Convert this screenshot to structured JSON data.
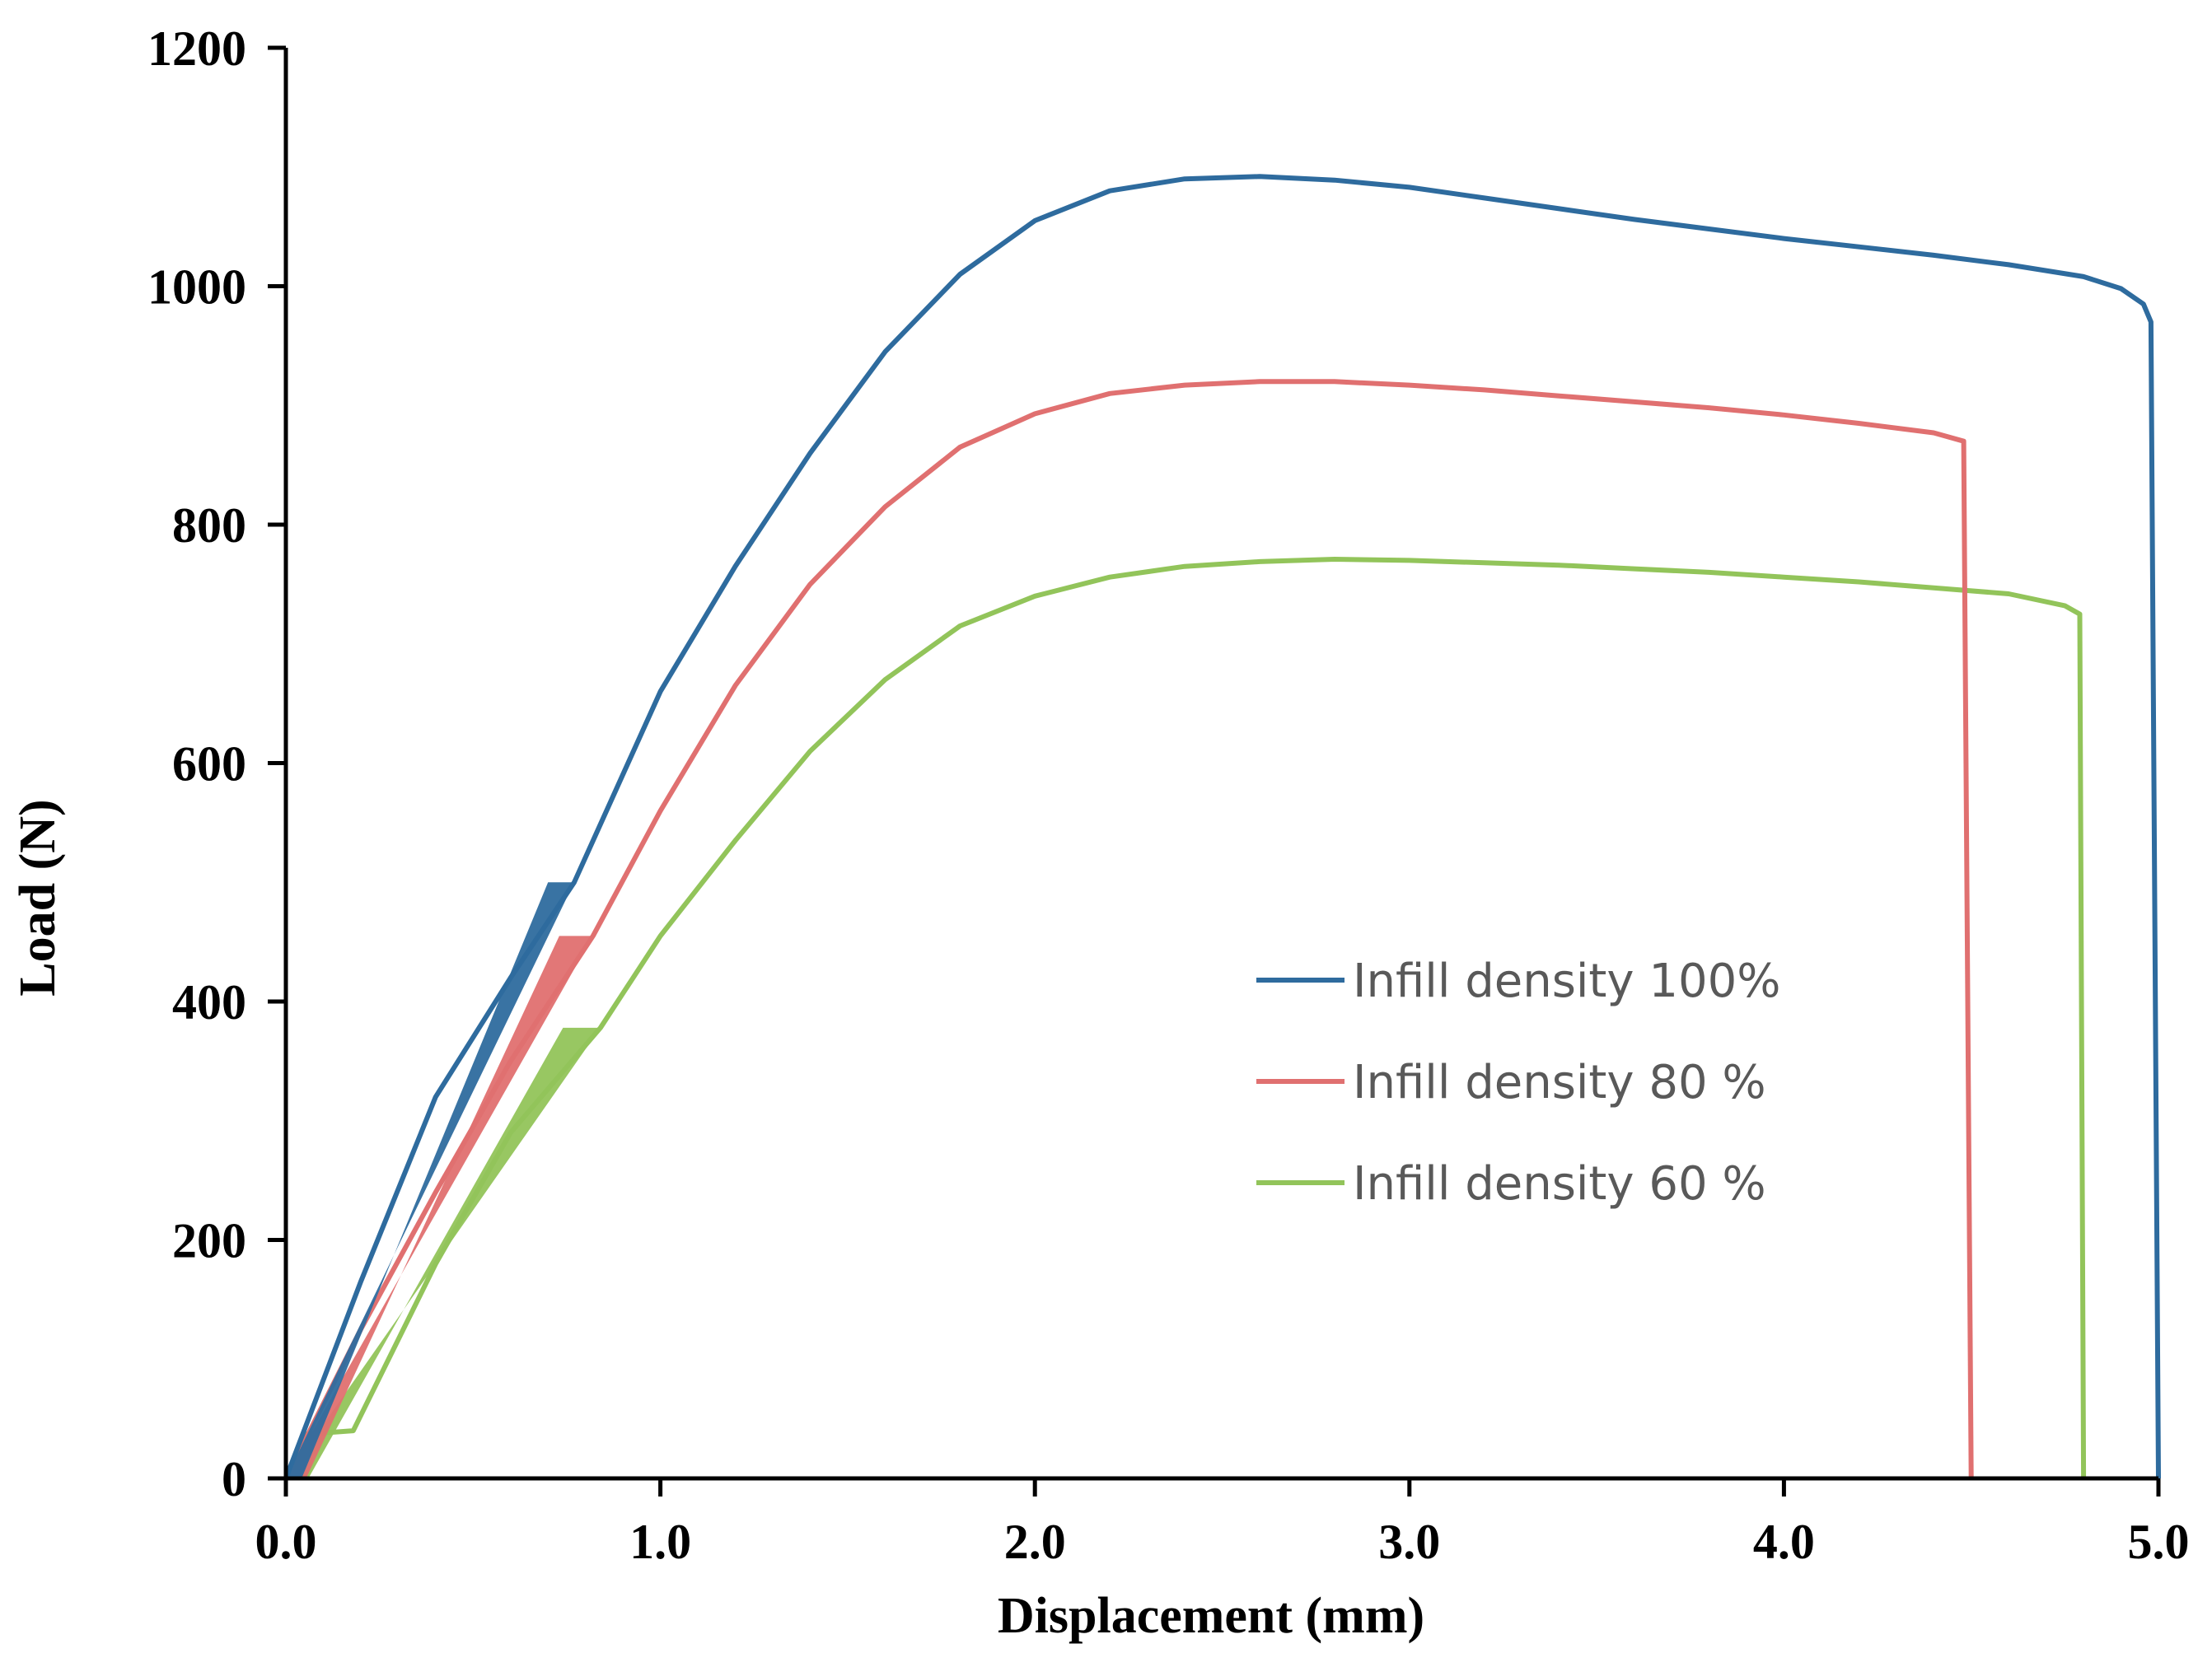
{
  "chart_data": {
    "type": "line",
    "title": "",
    "xlabel": "Displacement (mm)",
    "ylabel": "Load (N)",
    "xlim": [
      0,
      5
    ],
    "ylim": [
      0,
      1200
    ],
    "xticks": [
      0,
      1,
      2,
      3,
      4,
      5
    ],
    "yticks": [
      0,
      200,
      400,
      600,
      800,
      1000,
      1200
    ],
    "xtick_labels": [
      "0.0",
      "1.0",
      "2.0",
      "3.0",
      "4.0",
      "5.0"
    ],
    "ytick_labels": [
      "0",
      "200",
      "400",
      "600",
      "800",
      "1000",
      "1200"
    ],
    "grid": false,
    "legend_position": "center-right",
    "series": [
      {
        "name": "Infill density 100%",
        "color": "#2e6b9e",
        "ramp": {
          "x_end": 0.77,
          "y_end": 500,
          "band": 0.07
        },
        "x": [
          0,
          0.2,
          0.4,
          0.6,
          0.77,
          1.0,
          1.2,
          1.4,
          1.6,
          1.8,
          2.0,
          2.2,
          2.4,
          2.6,
          2.8,
          3.0,
          3.2,
          3.4,
          3.6,
          3.8,
          4.0,
          4.2,
          4.4,
          4.6,
          4.8,
          4.9,
          4.96,
          4.98,
          5.0
        ],
        "y": [
          0,
          165,
          320,
          420,
          500,
          660,
          765,
          860,
          945,
          1010,
          1055,
          1080,
          1090,
          1092,
          1089,
          1083,
          1074,
          1065,
          1056,
          1048,
          1040,
          1033,
          1026,
          1018,
          1008,
          998,
          985,
          970,
          0
        ]
      },
      {
        "name": "Infill density 80 %",
        "color": "#e07070",
        "ramp": {
          "x_end": 0.82,
          "y_end": 455,
          "band": 0.09
        },
        "x": [
          0,
          0.2,
          0.4,
          0.6,
          0.82,
          1.0,
          1.2,
          1.4,
          1.6,
          1.8,
          2.0,
          2.2,
          2.4,
          2.6,
          2.8,
          3.0,
          3.2,
          3.4,
          3.6,
          3.8,
          4.0,
          4.2,
          4.4,
          4.48,
          4.5
        ],
        "y": [
          0,
          125,
          240,
          350,
          455,
          560,
          665,
          750,
          815,
          865,
          893,
          910,
          917,
          920,
          920,
          917,
          913,
          908,
          903,
          898,
          892,
          885,
          877,
          870,
          0
        ]
      },
      {
        "name": "Infill density 60 %",
        "color": "#92c45a",
        "ramp": {
          "x_end": 0.84,
          "y_end": 378,
          "band": 0.1
        },
        "x": [
          0,
          0.05,
          0.18,
          0.4,
          0.6,
          0.84,
          1.0,
          1.2,
          1.4,
          1.6,
          1.8,
          2.0,
          2.2,
          2.4,
          2.6,
          2.8,
          3.0,
          3.2,
          3.4,
          3.6,
          3.8,
          4.0,
          4.2,
          4.4,
          4.6,
          4.75,
          4.79,
          4.8
        ],
        "y": [
          0,
          37,
          40,
          180,
          290,
          378,
          455,
          535,
          610,
          670,
          715,
          740,
          756,
          765,
          769,
          771,
          770,
          768,
          766,
          763,
          760,
          756,
          752,
          747,
          742,
          732,
          725,
          0
        ]
      }
    ]
  }
}
